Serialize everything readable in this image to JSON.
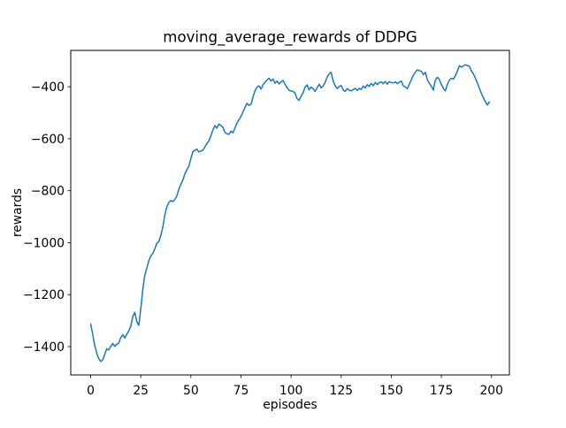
{
  "figure": {
    "background": "#ffffff"
  },
  "chart_data": {
    "type": "line",
    "title": "moving_average_rewards of DDPG",
    "xlabel": "episodes",
    "ylabel": "rewards",
    "grid": false,
    "line_color": "#1f77b4",
    "axis_color": "#000000",
    "xlim": [
      -9.95,
      208.95
    ],
    "ylim": [
      -1509,
      -260
    ],
    "xticks": [
      0,
      25,
      50,
      75,
      100,
      125,
      150,
      175,
      200
    ],
    "xtick_labels": [
      "0",
      "25",
      "50",
      "75",
      "100",
      "125",
      "150",
      "175",
      "200"
    ],
    "yticks": [
      -1400,
      -1200,
      -1000,
      -800,
      -600,
      -400
    ],
    "ytick_labels": [
      "−1400",
      "−1200",
      "−1000",
      "−800",
      "−600",
      "−400"
    ],
    "series": [
      {
        "name": "moving_average_rewards",
        "x_start": 0,
        "x_step": 1,
        "values": [
          -1313,
          -1352,
          -1395,
          -1424,
          -1446,
          -1457,
          -1451,
          -1430,
          -1408,
          -1413,
          -1399,
          -1388,
          -1399,
          -1391,
          -1386,
          -1366,
          -1354,
          -1367,
          -1352,
          -1340,
          -1322,
          -1285,
          -1268,
          -1303,
          -1318,
          -1255,
          -1180,
          -1125,
          -1098,
          -1070,
          -1051,
          -1042,
          -1024,
          -1002,
          -996,
          -972,
          -940,
          -893,
          -862,
          -845,
          -838,
          -842,
          -834,
          -820,
          -794,
          -775,
          -759,
          -735,
          -719,
          -706,
          -676,
          -650,
          -644,
          -640,
          -651,
          -647,
          -644,
          -631,
          -618,
          -608,
          -588,
          -566,
          -549,
          -559,
          -543,
          -549,
          -556,
          -576,
          -581,
          -583,
          -571,
          -577,
          -559,
          -539,
          -527,
          -513,
          -497,
          -479,
          -464,
          -472,
          -467,
          -440,
          -415,
          -401,
          -396,
          -409,
          -392,
          -383,
          -374,
          -367,
          -378,
          -370,
          -386,
          -378,
          -389,
          -381,
          -376,
          -390,
          -403,
          -414,
          -416,
          -418,
          -425,
          -446,
          -452,
          -437,
          -423,
          -401,
          -393,
          -412,
          -401,
          -407,
          -418,
          -404,
          -390,
          -404,
          -397,
          -383,
          -362,
          -350,
          -344,
          -378,
          -396,
          -407,
          -399,
          -395,
          -412,
          -418,
          -407,
          -413,
          -416,
          -411,
          -406,
          -414,
          -406,
          -410,
          -397,
          -404,
          -392,
          -399,
          -387,
          -396,
          -383,
          -392,
          -384,
          -381,
          -388,
          -380,
          -390,
          -380,
          -384,
          -385,
          -381,
          -388,
          -382,
          -378,
          -396,
          -401,
          -407,
          -390,
          -373,
          -356,
          -344,
          -335,
          -338,
          -340,
          -353,
          -344,
          -373,
          -386,
          -398,
          -413,
          -374,
          -363,
          -372,
          -391,
          -406,
          -416,
          -391,
          -374,
          -367,
          -370,
          -358,
          -339,
          -319,
          -324,
          -320,
          -315,
          -318,
          -322,
          -339,
          -350,
          -368,
          -386,
          -406,
          -426,
          -443,
          -458,
          -470,
          -458
        ]
      }
    ]
  }
}
